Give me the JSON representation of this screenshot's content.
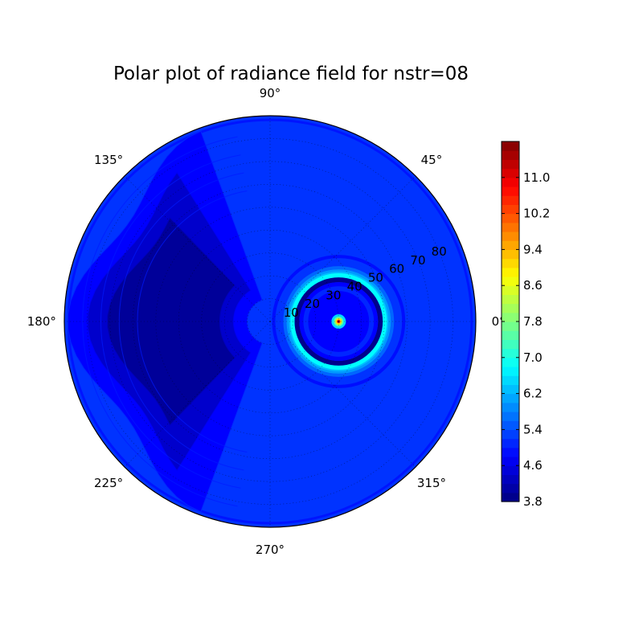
{
  "chart_data": {
    "type": "heatmap",
    "projection": "polar",
    "title": "Polar plot of radiance field for nstr=08",
    "angle_ticks": [
      "0°",
      "45°",
      "90°",
      "135°",
      "180°",
      "225°",
      "270°",
      "315°"
    ],
    "angle_tick_values": [
      0,
      45,
      90,
      135,
      180,
      225,
      270,
      315
    ],
    "radial_ticks": [
      "10",
      "20",
      "30",
      "40",
      "50",
      "60",
      "70",
      "80"
    ],
    "radial_tick_values": [
      10,
      20,
      30,
      40,
      50,
      60,
      70,
      80
    ],
    "rlim": [
      0,
      90
    ],
    "grid": true,
    "colorbar": {
      "colormap": "jet",
      "range": [
        3.8,
        11.8
      ],
      "ticks": [
        "3.8",
        "4.6",
        "5.4",
        "6.2",
        "7.0",
        "7.8",
        "8.6",
        "9.4",
        "10.2",
        "11.0"
      ],
      "tick_values": [
        3.8,
        4.6,
        5.4,
        6.2,
        7.0,
        7.8,
        8.6,
        9.4,
        10.2,
        11.0
      ],
      "placement": "right"
    },
    "features": {
      "background_level": 5.2,
      "sun_peak": {
        "theta_deg": 0,
        "r": 0,
        "value": 11.8
      },
      "aureole_ring": {
        "center_theta_deg": 0,
        "center_r": 30,
        "radius": 20,
        "peak_value": 6.8
      },
      "dark_band_inner_value": 3.9,
      "minimum_region": {
        "theta_deg": 180,
        "r_range": [
          30,
          70
        ],
        "value": 4.0
      }
    }
  }
}
